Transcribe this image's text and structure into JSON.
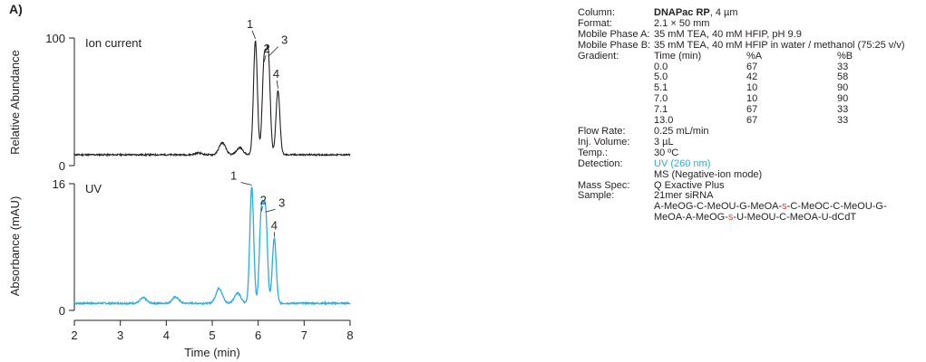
{
  "panel_label": "A)",
  "chart_data": [
    {
      "type": "line",
      "title": "Ion current",
      "xlabel": "",
      "ylabel": "Relative Abundance",
      "xlim": [
        2,
        8
      ],
      "ylim": [
        0,
        100
      ],
      "yticks": [
        "0",
        "100"
      ],
      "grid": false,
      "color": "#231f20",
      "baseline": 8.5,
      "peaks": [
        {
          "label": "1",
          "x": 5.94,
          "y": 98
        },
        {
          "label": "2",
          "x": 6.13,
          "y": 80
        },
        {
          "label": "3",
          "x": 6.22,
          "y": 84
        },
        {
          "label": "4",
          "x": 6.43,
          "y": 59
        }
      ],
      "minor_peaks": [
        {
          "x": 4.7,
          "y": 10
        },
        {
          "x": 5.22,
          "y": 18
        },
        {
          "x": 5.6,
          "y": 14
        }
      ]
    },
    {
      "type": "line",
      "title": "UV",
      "xlabel": "Time (min)",
      "ylabel": "Absorbance (mAU)",
      "xlim": [
        2,
        8
      ],
      "ylim": [
        0,
        16
      ],
      "yticks": [
        "0",
        "16"
      ],
      "xticks": [
        "2",
        "3",
        "4",
        "5",
        "6",
        "7",
        "8"
      ],
      "grid": false,
      "color": "#2aaee0",
      "baseline": 0.9,
      "peaks": [
        {
          "label": "1",
          "x": 5.86,
          "y": 15.6
        },
        {
          "label": "2",
          "x": 6.07,
          "y": 12.3
        },
        {
          "label": "3",
          "x": 6.16,
          "y": 12.2
        },
        {
          "label": "4",
          "x": 6.35,
          "y": 9.1
        }
      ],
      "minor_peaks": [
        {
          "x": 3.5,
          "y": 1.6
        },
        {
          "x": 4.2,
          "y": 1.7
        },
        {
          "x": 5.15,
          "y": 2.8
        },
        {
          "x": 5.55,
          "y": 2.2
        }
      ]
    }
  ],
  "conditions": {
    "column": {
      "label": "Column:",
      "name": "DNAPac RP",
      "detail": ", 4 µm"
    },
    "format": {
      "label": "Format:",
      "value": "2.1 × 50 mm"
    },
    "phase_a": {
      "label": "Mobile Phase A:",
      "value": "35 mM TEA, 40 mM HFIP, pH 9.9"
    },
    "phase_b": {
      "label": "Mobile Phase B:",
      "value": "35 mM TEA, 40 mM HFIP in water / methanol (75:25 v/v)"
    },
    "gradient": {
      "label": "Gradient:",
      "headers": [
        "Time (min)",
        "%A",
        "%B"
      ],
      "rows": [
        [
          "0.0",
          "67",
          "33"
        ],
        [
          "5.0",
          "42",
          "58"
        ],
        [
          "5.1",
          "10",
          "90"
        ],
        [
          "7.0",
          "10",
          "90"
        ],
        [
          "7.1",
          "67",
          "33"
        ],
        [
          "13.0",
          "67",
          "33"
        ]
      ]
    },
    "flow_rate": {
      "label": "Flow Rate:",
      "value": "0.25 mL/min"
    },
    "inj_volume": {
      "label": "Inj. Volume:",
      "value": "3 µL"
    },
    "temp": {
      "label": "Temp.:",
      "value": "30 ºC"
    },
    "detection": {
      "label": "Detection:",
      "uv": "UV (260 nm)",
      "ms": "MS (Negative-ion mode)"
    },
    "mass_spec": {
      "label": "Mass Spec:",
      "value": "Q Exactive Plus"
    },
    "sample": {
      "label": "Sample:",
      "value": "21mer siRNA",
      "seq1_a": "A-MeOG-C-MeOU-G-MeOA-",
      "seq1_s": "s",
      "seq1_b": "-C-MeOC-C-MeOU-G-",
      "seq2_a": "MeOA-A-MeOG-",
      "seq2_s": "s",
      "seq2_b": "-U-MeOU-C-MeOA-U-dCdT"
    },
    "accent_color": "#2aaee0",
    "modification_color": "#e8423f"
  }
}
